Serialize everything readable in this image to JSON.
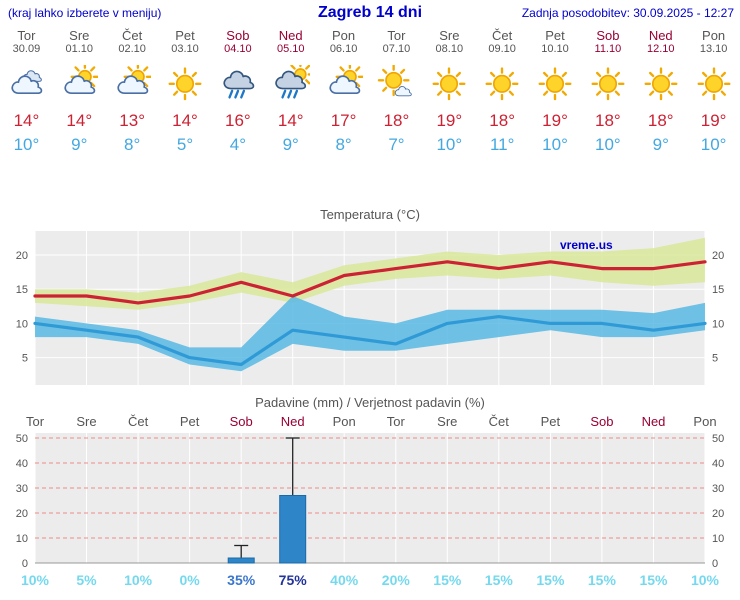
{
  "header": {
    "hint": "(kraj lahko izberete v meniju)",
    "title": "Zagreb 14 dni",
    "last_update": "Zadnja posodobitev: 30.09.2025 - 12:27"
  },
  "colors": {
    "header_blue": "#0000cc",
    "weekday_gray": "#555555",
    "weekend_red": "#990033",
    "temp_max_red": "#cc2233",
    "temp_min_blue": "#44a8e0",
    "pct_light": "#74d9ee",
    "pct_medium": "#3a77cc",
    "pct_dark": "#223399",
    "bar_blue": "#2e86c8"
  },
  "forecast": {
    "days": [
      {
        "day": "Tor",
        "date": "30.09",
        "weekend": false,
        "icon": "cloudy",
        "tmax": "14°",
        "tmin": "10°"
      },
      {
        "day": "Sre",
        "date": "01.10",
        "weekend": false,
        "icon": "partly-cloudy",
        "tmax": "14°",
        "tmin": "9°"
      },
      {
        "day": "Čet",
        "date": "02.10",
        "weekend": false,
        "icon": "partly-cloudy",
        "tmax": "13°",
        "tmin": "8°"
      },
      {
        "day": "Pet",
        "date": "03.10",
        "weekend": false,
        "icon": "sunny",
        "tmax": "14°",
        "tmin": "5°"
      },
      {
        "day": "Sob",
        "date": "04.10",
        "weekend": true,
        "icon": "rain",
        "tmax": "16°",
        "tmin": "4°"
      },
      {
        "day": "Ned",
        "date": "05.10",
        "weekend": true,
        "icon": "sun-rain",
        "tmax": "14°",
        "tmin": "9°"
      },
      {
        "day": "Pon",
        "date": "06.10",
        "weekend": false,
        "icon": "partly-cloudy",
        "tmax": "17°",
        "tmin": "8°"
      },
      {
        "day": "Tor",
        "date": "07.10",
        "weekend": false,
        "icon": "mostly-sunny",
        "tmax": "18°",
        "tmin": "7°"
      },
      {
        "day": "Sre",
        "date": "08.10",
        "weekend": false,
        "icon": "sunny",
        "tmax": "19°",
        "tmin": "10°"
      },
      {
        "day": "Čet",
        "date": "09.10",
        "weekend": false,
        "icon": "sunny",
        "tmax": "18°",
        "tmin": "11°"
      },
      {
        "day": "Pet",
        "date": "10.10",
        "weekend": false,
        "icon": "sunny",
        "tmax": "19°",
        "tmin": "10°"
      },
      {
        "day": "Sob",
        "date": "11.10",
        "weekend": true,
        "icon": "sunny",
        "tmax": "18°",
        "tmin": "10°"
      },
      {
        "day": "Ned",
        "date": "12.10",
        "weekend": true,
        "icon": "sunny",
        "tmax": "18°",
        "tmin": "9°"
      },
      {
        "day": "Pon",
        "date": "13.10",
        "weekend": false,
        "icon": "sunny",
        "tmax": "19°",
        "tmin": "10°"
      }
    ]
  },
  "chart_data": [
    {
      "type": "line",
      "title": "Temperatura (°C)",
      "watermark": "vreme.us",
      "x_categories": [
        "Tor",
        "Sre",
        "Čet",
        "Pet",
        "Sob",
        "Ned",
        "Pon",
        "Tor",
        "Sre",
        "Čet",
        "Pet",
        "Sob",
        "Ned",
        "Pon"
      ],
      "yticks": [
        5,
        10,
        15,
        20
      ],
      "ylim": [
        1,
        23.5
      ],
      "grid": true,
      "series": [
        {
          "name": "temp-max",
          "color": "#cc2233",
          "values": [
            14,
            14,
            13,
            14,
            16,
            14,
            17,
            18,
            19,
            18,
            19,
            18,
            18,
            19
          ],
          "band_upper": [
            15,
            15,
            14.5,
            15.5,
            17.5,
            16,
            18.5,
            19.5,
            20.5,
            20,
            20.5,
            20.5,
            21,
            22.5
          ],
          "band_lower": [
            13,
            12.5,
            12,
            13,
            14.5,
            13,
            15.5,
            16.5,
            17,
            16.5,
            17,
            16,
            15.5,
            16
          ],
          "band_color": "#d9e79a"
        },
        {
          "name": "temp-min",
          "color": "#2f9ad6",
          "values": [
            10,
            9,
            8,
            5,
            4,
            9,
            8,
            7,
            10,
            11,
            10,
            10,
            9,
            10
          ],
          "band_upper": [
            11,
            10,
            9,
            6.5,
            6.5,
            14,
            11,
            10,
            12,
            12,
            12,
            12,
            11.5,
            13
          ],
          "band_lower": [
            8,
            8,
            7,
            4,
            3,
            7,
            6,
            6,
            7,
            8,
            9,
            8,
            8,
            9
          ],
          "band_color": "#58b8e4"
        }
      ]
    },
    {
      "type": "bar",
      "title": "Padavine (mm) / Verjetnost padavin (%)",
      "x_categories": [
        "Tor",
        "Sre",
        "Čet",
        "Pet",
        "Sob",
        "Ned",
        "Pon",
        "Tor",
        "Sre",
        "Čet",
        "Pet",
        "Sob",
        "Ned",
        "Pon"
      ],
      "weekend_flags": [
        false,
        false,
        false,
        false,
        true,
        true,
        false,
        false,
        false,
        false,
        false,
        true,
        true,
        false
      ],
      "yticks": [
        0,
        10,
        20,
        30,
        40,
        50
      ],
      "ylim": [
        0,
        52
      ],
      "values": [
        0,
        0,
        0,
        0,
        2,
        27,
        0,
        0,
        0,
        0,
        0,
        0,
        0,
        0
      ],
      "error_max": [
        0,
        0,
        0,
        0,
        7,
        50,
        0,
        0,
        0,
        0,
        0,
        0,
        0,
        0
      ],
      "bar_color": "#2e86c8",
      "probabilities": [
        "10%",
        "5%",
        "10%",
        "0%",
        "35%",
        "75%",
        "40%",
        "20%",
        "15%",
        "15%",
        "15%",
        "15%",
        "15%",
        "10%"
      ],
      "probability_colors": [
        "light",
        "light",
        "light",
        "light",
        "medium",
        "dark",
        "light",
        "light",
        "light",
        "light",
        "light",
        "light",
        "light",
        "light"
      ]
    }
  ]
}
